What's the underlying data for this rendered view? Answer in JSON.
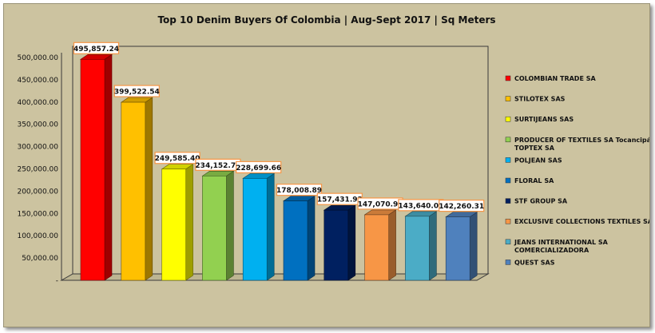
{
  "chart_data": {
    "type": "bar",
    "title": "Top 10 Denim Buyers Of Colombia | Aug-Sept 2017 | Sq Meters",
    "xlabel": "",
    "ylabel": "",
    "ylim": [
      0,
      500000
    ],
    "yticks": [
      "-",
      "50,000.00",
      "100,000.00",
      "150,000.00",
      "200,000.00",
      "250,000.00",
      "300,000.00",
      "350,000.00",
      "400,000.00",
      "450,000.00",
      "500,000.00"
    ],
    "grid": false,
    "legend": "right",
    "categories": [
      "COLOMBIAN TRADE SA",
      "STILOTEX SAS",
      "SURTIJEANS SAS",
      "PRODUCER OF TEXTILES SA Tocancipá TOPTEX SA",
      "POLJEAN SAS",
      "FLORAL SA",
      "STF GROUP SA",
      "EXCLUSIVE COLLECTIONS TEXTILES SA",
      "JEANS INTERNATIONAL SA COMERCIALIZADORA",
      "QUEST SAS"
    ],
    "legend_lines": [
      [
        "COLOMBIAN TRADE SA"
      ],
      [
        "STILOTEX SAS"
      ],
      [
        "SURTIJEANS SAS"
      ],
      [
        "PRODUCER OF TEXTILES SA Tocancipá",
        "TOPTEX SA"
      ],
      [
        "POLJEAN SAS"
      ],
      [
        "FLORAL SA"
      ],
      [
        "STF GROUP SA"
      ],
      [
        "EXCLUSIVE COLLECTIONS TEXTILES SA"
      ],
      [
        "JEANS INTERNATIONAL SA",
        "COMERCIALIZADORA"
      ],
      [
        "QUEST SAS"
      ]
    ],
    "values": [
      495857.24,
      399522.54,
      249585.4,
      234152.73,
      228699.66,
      178008.89,
      157431.93,
      147070.98,
      143640.05,
      142260.31
    ],
    "value_labels": [
      "495,857.24",
      "399,522.54",
      "249,585.40",
      "234,152.73",
      "228,699.66",
      "178,008.89",
      "157,431.93",
      "147,070.98",
      "143,640.05",
      "142,260.31"
    ],
    "colors": [
      "#ff0000",
      "#ffc000",
      "#ffff00",
      "#92d050",
      "#00b0f0",
      "#0070c0",
      "#002060",
      "#f79646",
      "#4bacc6",
      "#4f81bd"
    ]
  }
}
